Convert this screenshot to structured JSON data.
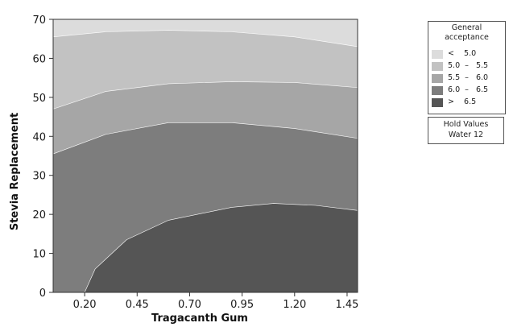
{
  "chart_data": {
    "type": "contour",
    "xlabel": "Tragacanth Gum",
    "ylabel": "Stevia Replacement",
    "xlim": [
      0.05,
      1.5
    ],
    "ylim": [
      0,
      70
    ],
    "xticks": [
      "0.20",
      "0.45",
      "0.70",
      "0.95",
      "1.20",
      "1.45"
    ],
    "yticks": [
      "0",
      "10",
      "20",
      "30",
      "40",
      "50",
      "60",
      "70"
    ],
    "legend": {
      "title_line1": "General",
      "title_line2": "acceptance",
      "entries": [
        {
          "label": "<    5.0",
          "color": "#dcdcdc"
        },
        {
          "label": "5.0  –   5.5",
          "color": "#c2c2c2"
        },
        {
          "label": "5.5  –   6.0",
          "color": "#a6a6a6"
        },
        {
          "label": "6.0  –   6.5",
          "color": "#7d7d7d"
        },
        {
          "label": ">    6.5",
          "color": "#555555"
        }
      ]
    },
    "hold_values": {
      "title": "Hold Values",
      "text": "Water   12"
    },
    "contours": [
      {
        "level": "5.0",
        "points": [
          [
            0.05,
            65.5
          ],
          [
            0.3,
            66.8
          ],
          [
            0.6,
            67.2
          ],
          [
            0.9,
            66.8
          ],
          [
            1.2,
            65.5
          ],
          [
            1.5,
            63.0
          ]
        ]
      },
      {
        "level": "5.5",
        "points": [
          [
            0.05,
            47.0
          ],
          [
            0.3,
            51.5
          ],
          [
            0.6,
            53.5
          ],
          [
            0.9,
            54.0
          ],
          [
            1.2,
            53.8
          ],
          [
            1.5,
            52.5
          ]
        ]
      },
      {
        "level": "6.0",
        "points": [
          [
            0.05,
            35.5
          ],
          [
            0.3,
            40.5
          ],
          [
            0.6,
            43.5
          ],
          [
            0.9,
            43.5
          ],
          [
            1.2,
            42.0
          ],
          [
            1.5,
            39.5
          ]
        ]
      },
      {
        "level": "6.5",
        "points": [
          [
            0.2,
            0.0
          ],
          [
            0.25,
            6.0
          ],
          [
            0.4,
            13.5
          ],
          [
            0.6,
            18.5
          ],
          [
            0.9,
            21.8
          ],
          [
            1.1,
            22.8
          ],
          [
            1.3,
            22.3
          ],
          [
            1.5,
            21.0
          ]
        ]
      }
    ]
  }
}
